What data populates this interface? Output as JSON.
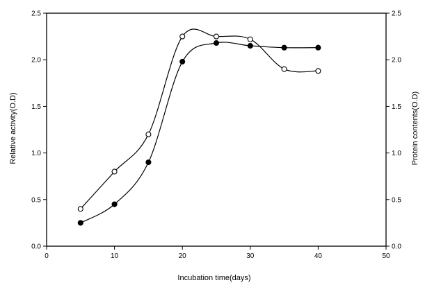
{
  "chart_data": {
    "type": "line",
    "title": "",
    "xlabel": "Incubation time(days)",
    "ylabel_left": "Relative activity(O.D)",
    "ylabel_right": "Protein contents(O.D)",
    "xlim": [
      0,
      50
    ],
    "ylim": [
      0,
      2.5
    ],
    "x_ticks": [
      "0",
      "10",
      "20",
      "30",
      "40",
      "50"
    ],
    "y_ticks": [
      "0.0",
      "0.5",
      "1.0",
      "1.5",
      "2.0",
      "2.5"
    ],
    "y_ticks_right": [
      "0.0",
      "0.5",
      "1.0",
      "1.5",
      "2.0",
      "2.5"
    ],
    "grid": false,
    "legend": "none",
    "series": [
      {
        "marker": "filled-circle",
        "color": "#000000",
        "x": [
          5,
          10,
          15,
          20,
          25,
          30,
          35,
          40
        ],
        "values": [
          0.25,
          0.45,
          0.9,
          1.98,
          2.18,
          2.15,
          2.13,
          2.13
        ]
      },
      {
        "marker": "open-circle",
        "color": "#000000",
        "x": [
          5,
          10,
          15,
          20,
          25,
          30,
          35,
          40
        ],
        "values": [
          0.4,
          0.8,
          1.2,
          2.25,
          2.25,
          2.22,
          1.9,
          1.88
        ]
      }
    ]
  }
}
